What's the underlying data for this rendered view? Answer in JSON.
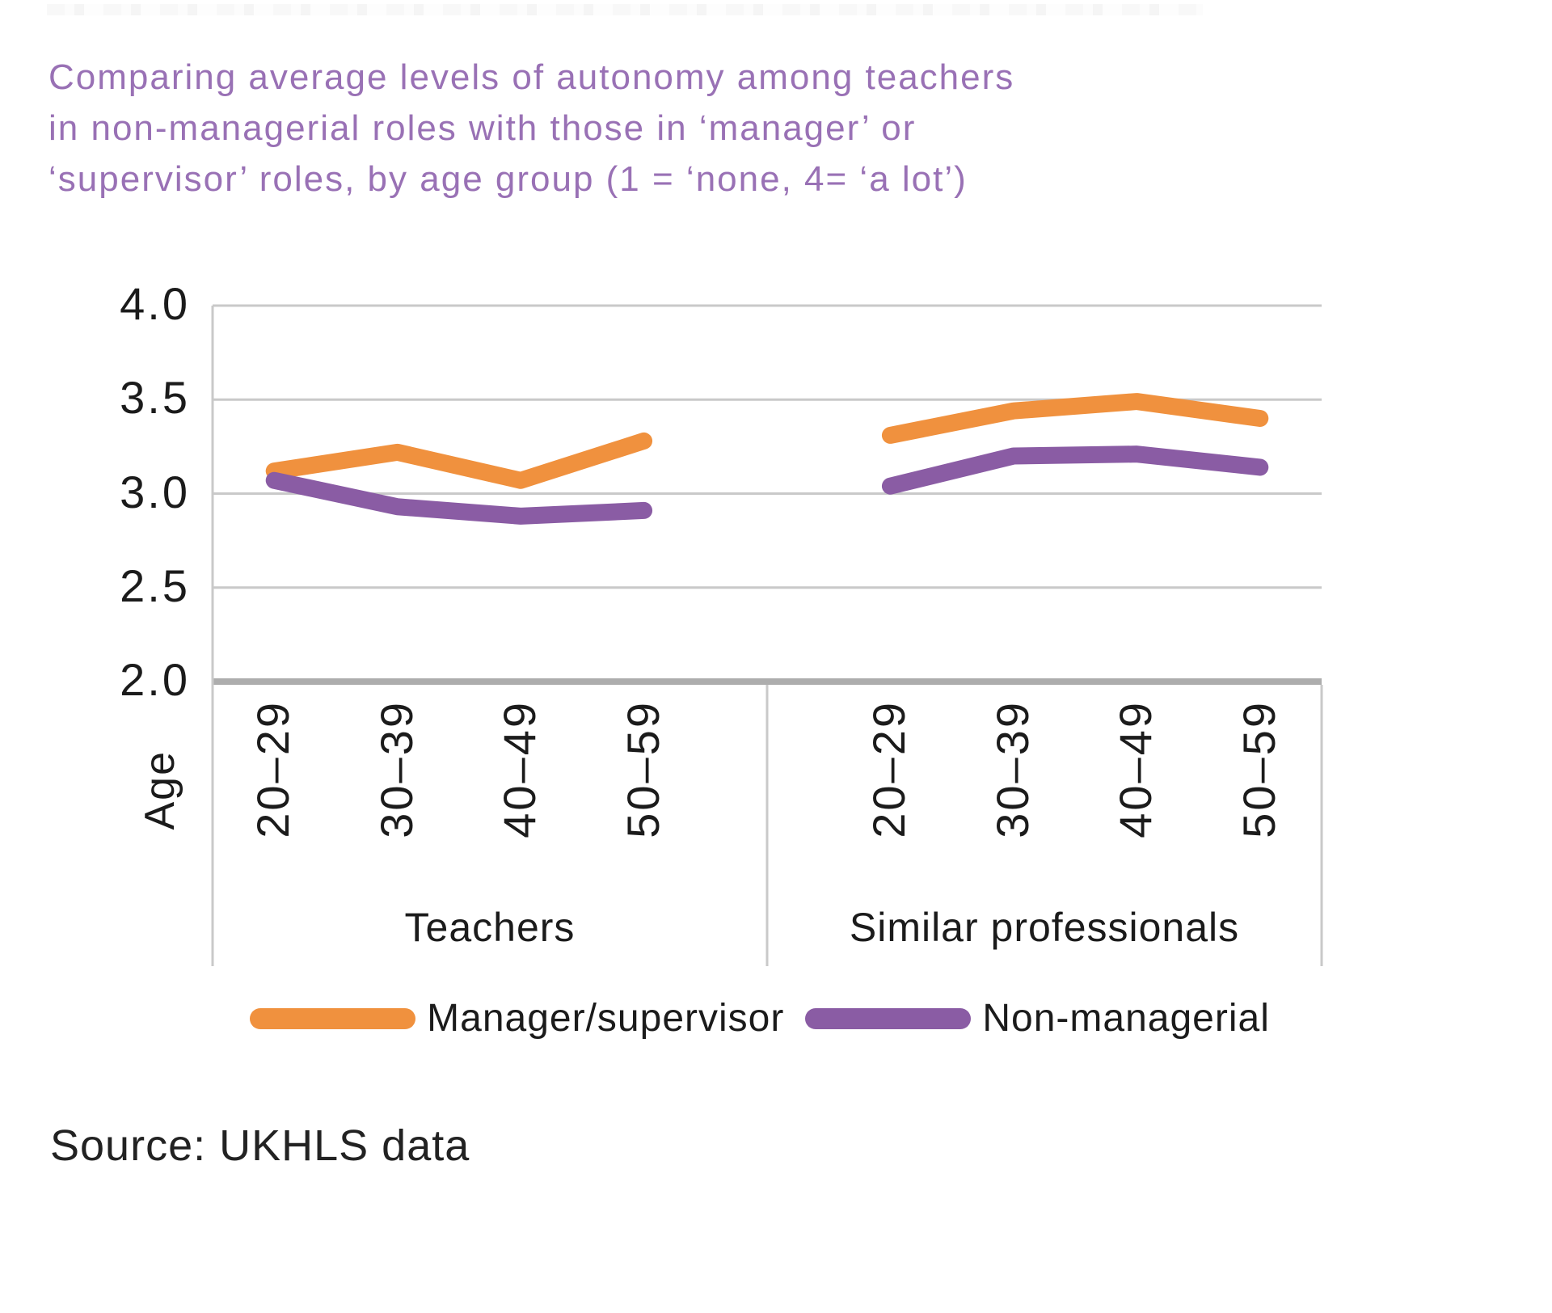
{
  "title": {
    "text": "Comparing average levels of autonomy among teachers\nin non-managerial roles with those in ‘manager’ or\n‘supervisor’ roles, by age group (1 = ‘none, 4= ‘a lot’)"
  },
  "source": {
    "text": "Source: UKHLS data"
  },
  "chart_data": {
    "type": "line",
    "title": "Comparing average levels of autonomy among teachers in non-managerial roles with those in ‘manager’ or ‘supervisor’ roles, by age group (1 = ‘none, 4= ‘a lot’)",
    "xlabel": "Age",
    "ylabel": "",
    "ylim": [
      2.0,
      4.0
    ],
    "yticks": [
      4.0,
      3.5,
      3.0,
      2.5,
      2.0
    ],
    "ytick_labels": [
      "4.0",
      "3.5",
      "3.0",
      "2.5",
      "2.0"
    ],
    "grid": true,
    "legend_position": "bottom",
    "panels": [
      {
        "label": "Teachers",
        "categories": [
          "20–29",
          "30–39",
          "40–49",
          "50–59"
        ],
        "series": [
          {
            "name": "Manager/supervisor",
            "values": [
              3.12,
              3.22,
              3.07,
              3.28
            ]
          },
          {
            "name": "Non-managerial",
            "values": [
              3.07,
              2.93,
              2.88,
              2.91
            ]
          }
        ]
      },
      {
        "label": "Similar professionals",
        "categories": [
          "20–29",
          "30–39",
          "40–49",
          "50–59"
        ],
        "series": [
          {
            "name": "Manager/supervisor",
            "values": [
              3.31,
              3.44,
              3.49,
              3.4
            ]
          },
          {
            "name": "Non-managerial",
            "values": [
              3.04,
              3.2,
              3.21,
              3.14
            ]
          }
        ]
      }
    ],
    "legend": [
      {
        "label": "Manager/supervisor",
        "color": "#F0913E"
      },
      {
        "label": "Non-managerial",
        "color": "#8A5CA4"
      }
    ],
    "colors": {
      "title": "#9971B5",
      "gridline": "#C9C9C9",
      "axis_line": "#ADADAD",
      "text": "#1B1B1B"
    }
  }
}
